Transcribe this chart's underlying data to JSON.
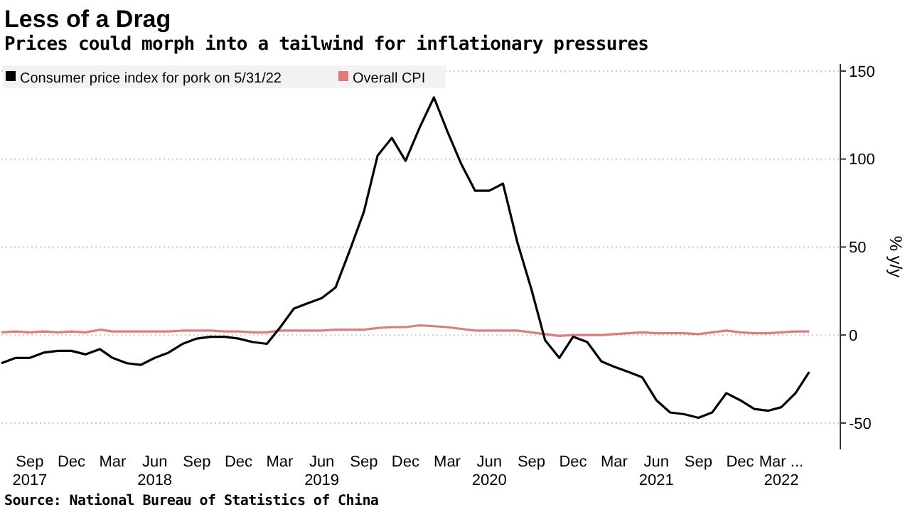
{
  "chart_data": {
    "type": "line",
    "title": "Less of a Drag",
    "subtitle": "Prices could morph into a tailwind for inflationary pressures",
    "ylabel": "% y/y",
    "x": [
      "2017-07",
      "2017-08",
      "2017-09",
      "2017-10",
      "2017-11",
      "2017-12",
      "2018-01",
      "2018-02",
      "2018-03",
      "2018-04",
      "2018-05",
      "2018-06",
      "2018-07",
      "2018-08",
      "2018-09",
      "2018-10",
      "2018-11",
      "2018-12",
      "2019-01",
      "2019-02",
      "2019-03",
      "2019-04",
      "2019-05",
      "2019-06",
      "2019-07",
      "2019-08",
      "2019-09",
      "2019-10",
      "2019-11",
      "2019-12",
      "2020-01",
      "2020-02",
      "2020-03",
      "2020-04",
      "2020-05",
      "2020-06",
      "2020-07",
      "2020-08",
      "2020-09",
      "2020-10",
      "2020-11",
      "2020-12",
      "2021-01",
      "2021-02",
      "2021-03",
      "2021-04",
      "2021-05",
      "2021-06",
      "2021-07",
      "2021-08",
      "2021-09",
      "2021-10",
      "2021-11",
      "2021-12",
      "2022-01",
      "2022-02",
      "2022-03",
      "2022-04",
      "2022-05"
    ],
    "series": [
      {
        "name": "Consumer price index for pork on 5/31/22",
        "color": "#000000",
        "values": [
          -16,
          -13,
          -13,
          -10,
          -9,
          -9,
          -11,
          -8,
          -13,
          -16,
          -17,
          -13,
          -10,
          -5,
          -2,
          -1,
          -1,
          -2,
          -4,
          -5,
          4,
          15,
          18,
          21,
          27,
          48,
          70,
          102,
          112,
          99,
          118,
          135,
          116,
          97,
          82,
          82,
          86,
          53,
          26,
          -3,
          -13,
          -1,
          -4,
          -15,
          -18,
          -21,
          -24,
          -37,
          -44,
          -45,
          -47,
          -44,
          -33,
          -37,
          -42,
          -43,
          -41,
          -33,
          -21
        ]
      },
      {
        "name": "Overall CPI",
        "color": "#e07b7b",
        "values": [
          1.5,
          2,
          1.5,
          2,
          1.5,
          2,
          1.5,
          3,
          2,
          2,
          2,
          2,
          2,
          2.5,
          2.5,
          2.5,
          2,
          2,
          1.5,
          1.5,
          2.5,
          2.5,
          2.5,
          2.5,
          3,
          3,
          3,
          4,
          4.5,
          4.5,
          5.5,
          5,
          4.5,
          3.5,
          2.5,
          2.5,
          2.5,
          2.5,
          1.5,
          0.5,
          -0.5,
          0,
          0,
          0,
          0.5,
          1,
          1.5,
          1,
          1,
          1,
          0.5,
          1.5,
          2.5,
          1.5,
          1,
          1,
          1.5,
          2,
          2
        ]
      }
    ],
    "xlim": [
      "2017-07",
      "2022-07-08"
    ],
    "xticks": [
      {
        "value": "2017-09",
        "label": "Sep\n2017"
      },
      {
        "value": "2017-12",
        "label": "Dec"
      },
      {
        "value": "2018-03",
        "label": "Mar"
      },
      {
        "value": "2018-06",
        "label": "Jun\n2018"
      },
      {
        "value": "2018-09",
        "label": "Sep"
      },
      {
        "value": "2018-12",
        "label": "Dec"
      },
      {
        "value": "2019-03",
        "label": "Mar"
      },
      {
        "value": "2019-06",
        "label": "Jun\n2019"
      },
      {
        "value": "2019-09",
        "label": "Sep"
      },
      {
        "value": "2019-12",
        "label": "Dec"
      },
      {
        "value": "2020-03",
        "label": "Mar"
      },
      {
        "value": "2020-06",
        "label": "Jun\n2020"
      },
      {
        "value": "2020-09",
        "label": "Sep"
      },
      {
        "value": "2020-12",
        "label": "Dec"
      },
      {
        "value": "2021-03",
        "label": "Mar"
      },
      {
        "value": "2021-06",
        "label": "Jun\n2021"
      },
      {
        "value": "2021-09",
        "label": "Sep"
      },
      {
        "value": "2021-12",
        "label": "Dec"
      },
      {
        "value": "2022-03",
        "label": "Mar ...\n2022"
      }
    ],
    "ylim": [
      -65,
      154
    ],
    "yticks": [
      -50,
      0,
      50,
      100,
      150
    ],
    "grid": "y",
    "legend": "top left",
    "annotations": [
      "Source: National Bureau of Statistics of China"
    ]
  }
}
